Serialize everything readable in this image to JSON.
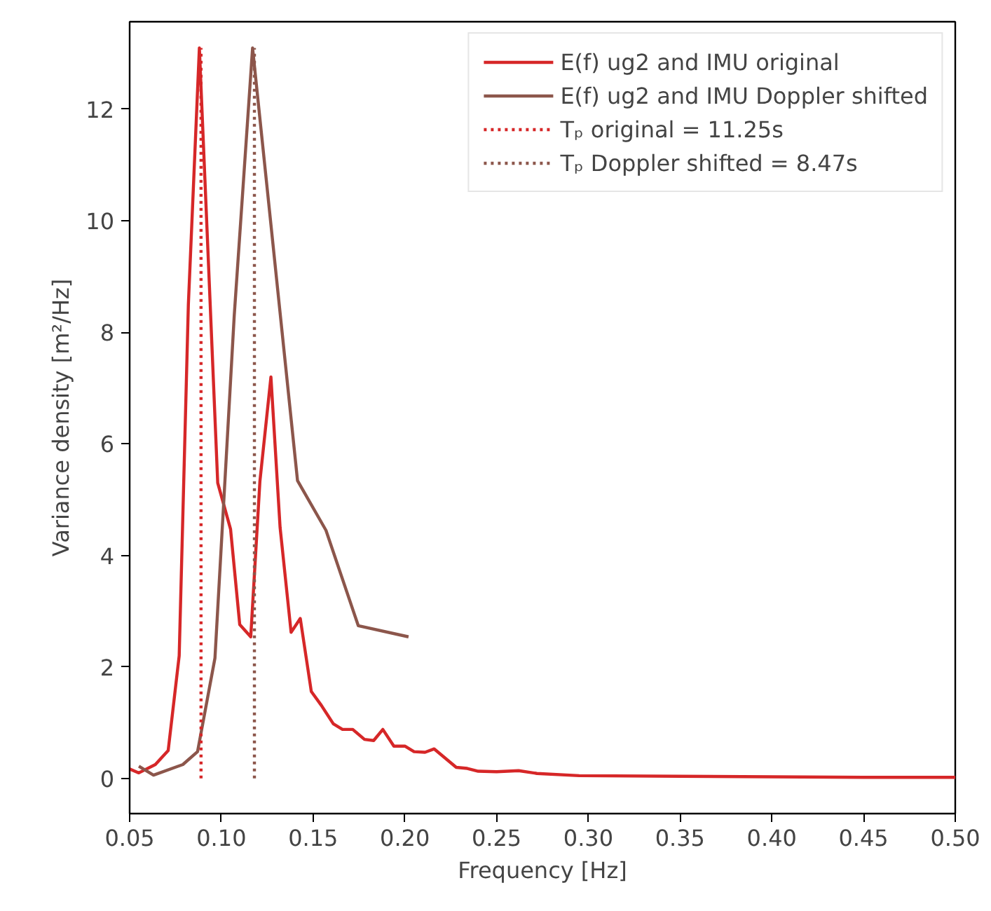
{
  "chart_data": {
    "type": "line",
    "xlabel": "Frequency [Hz]",
    "ylabel": "Variance density [m²/Hz]",
    "series": [
      {
        "name": "E(f) ug2 and IMU original",
        "color": "#d62728",
        "line_style": "solid",
        "x": [
          0.05,
          0.055,
          0.064,
          0.071,
          0.077,
          0.082,
          0.088,
          0.098,
          0.105,
          0.11,
          0.116,
          0.121,
          0.127,
          0.132,
          0.138,
          0.143,
          0.149,
          0.1545,
          0.161,
          0.166,
          0.1716,
          0.178,
          0.183,
          0.188,
          0.194,
          0.2,
          0.205,
          0.211,
          0.216,
          0.228,
          0.234,
          0.24,
          0.25,
          0.262,
          0.272,
          0.295,
          0.35,
          0.4,
          0.45,
          0.5
        ],
        "values": [
          0.17,
          0.1,
          0.25,
          0.5,
          2.2,
          8.5,
          13.1,
          5.3,
          4.47,
          2.76,
          2.54,
          5.33,
          7.2,
          4.5,
          2.62,
          2.87,
          1.56,
          1.31,
          0.98,
          0.88,
          0.88,
          0.7,
          0.68,
          0.88,
          0.58,
          0.58,
          0.48,
          0.47,
          0.53,
          0.2,
          0.18,
          0.13,
          0.12,
          0.14,
          0.09,
          0.05,
          0.04,
          0.03,
          0.02,
          0.02
        ]
      },
      {
        "name": "E(f) ug2 and IMU Doppler shifted",
        "color": "#8c564b",
        "line_style": "solid",
        "x": [
          0.055,
          0.063,
          0.079,
          0.087,
          0.0965,
          0.107,
          0.117,
          0.1415,
          0.157,
          0.1746,
          0.202
        ],
        "values": [
          0.22,
          0.06,
          0.25,
          0.48,
          2.16,
          8.3,
          13.1,
          5.34,
          4.45,
          2.74,
          2.54
        ]
      },
      {
        "name": "Tₚ original = 11.25s",
        "color": "#d62728",
        "line_style": "dotted",
        "x": [
          0.0889,
          0.0889
        ],
        "values": [
          0,
          13.1
        ]
      },
      {
        "name": "Tₚ Doppler shifted = 8.47s",
        "color": "#8c564b",
        "line_style": "dotted",
        "x": [
          0.118,
          0.118
        ],
        "values": [
          0,
          13.1
        ]
      }
    ],
    "xlim": [
      0.05,
      0.5
    ],
    "ylim": [
      -0.63,
      13.57
    ],
    "xticks": [
      0.05,
      {
        "value": 0.1,
        "label": "0.10"
      },
      0.15,
      {
        "value": 0.2,
        "label": "0.20"
      },
      0.25,
      {
        "value": 0.3,
        "label": "0.30"
      },
      0.35,
      {
        "value": 0.4,
        "label": "0.40"
      },
      0.45,
      {
        "value": 0.5,
        "label": "0.50"
      }
    ],
    "yticks": [
      0,
      2,
      4,
      6,
      8,
      10,
      12
    ],
    "legend": "top right",
    "grid": false
  }
}
